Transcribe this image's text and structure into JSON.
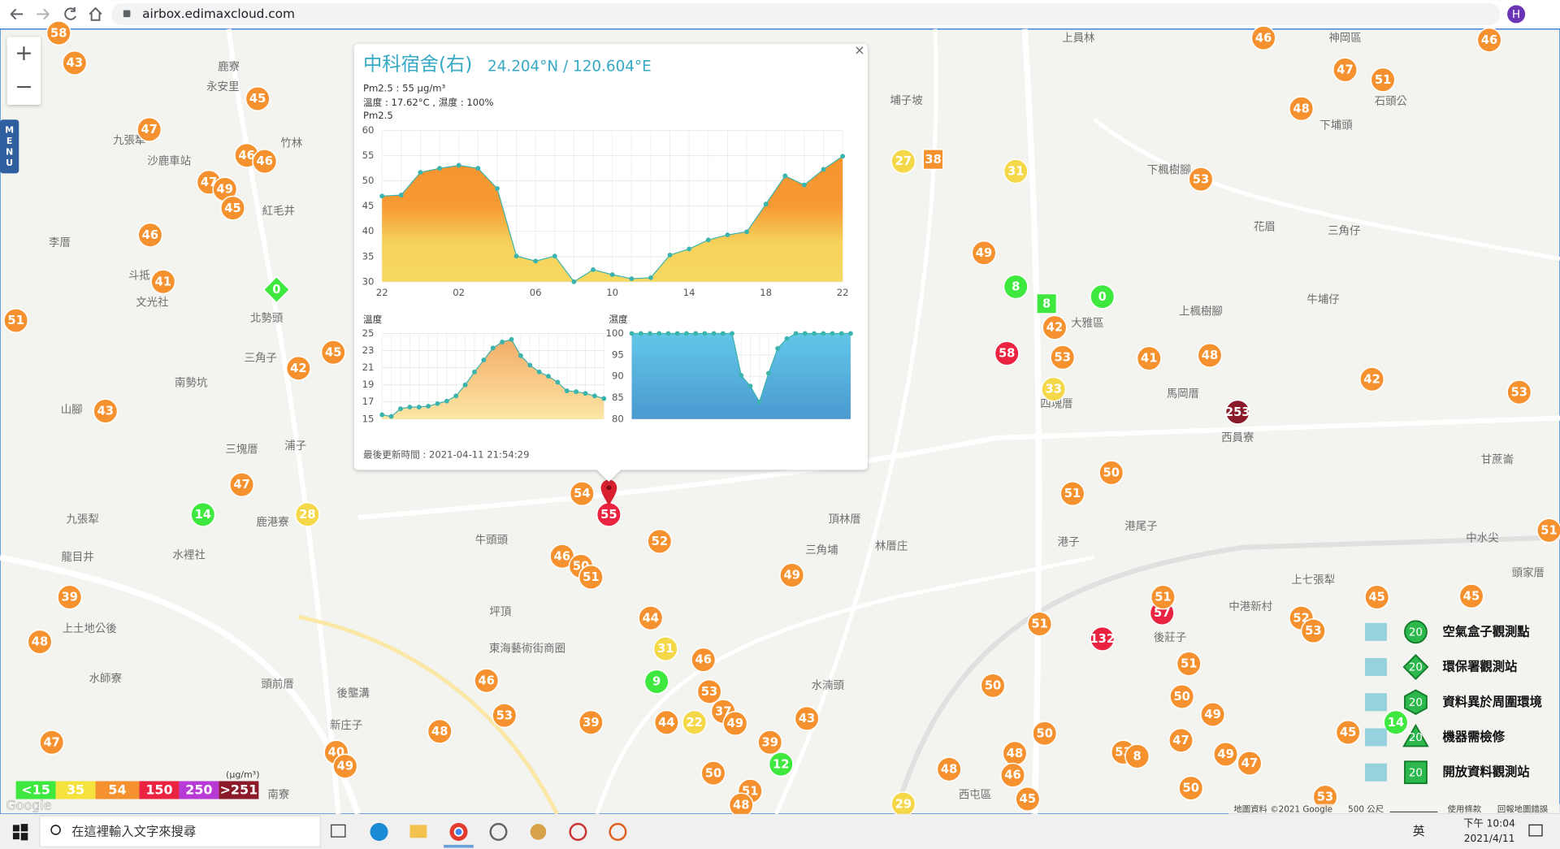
{
  "browser": {
    "url": "airbox.edimaxcloud.com",
    "avatar": "H"
  },
  "map": {
    "menu": "MENU",
    "zoom_in": "+",
    "zoom_out": "−",
    "google": "Google",
    "footer": [
      "地圖資料 ©2021 Google",
      "500 公尺",
      "使用條款",
      "回報地圖錯誤"
    ],
    "scale_unit": "(μg/m³)",
    "scale": [
      {
        "label": "<15",
        "color": "#3ee83e"
      },
      {
        "label": "35",
        "color": "#f5e23c"
      },
      {
        "label": "54",
        "color": "#f5922f"
      },
      {
        "label": "150",
        "color": "#ea2440"
      },
      {
        "label": "250",
        "color": "#b83ad4"
      },
      {
        "label": ">251",
        "color": "#8b1a2b"
      }
    ],
    "legend": [
      {
        "label": "空氣盒子觀測點",
        "icon_label": "20"
      },
      {
        "label": "環保署觀測站",
        "icon_label": "20"
      },
      {
        "label": "資料異於周圍環境",
        "icon_label": "20"
      },
      {
        "label": "機器需檢修",
        "icon_label": "20"
      },
      {
        "label": "開放資料觀測站",
        "icon_label": "20"
      }
    ],
    "places": [
      "鹿寮",
      "永安里",
      "九張犁",
      "沙鹿車站",
      "竹林",
      "紅毛井",
      "李厝",
      "斗抵",
      "文光社",
      "北勢頭",
      "三角子",
      "南勢坑",
      "山腳",
      "三塊厝",
      "浦子",
      "九張犁",
      "龍目井",
      "水裡社",
      "鹿港寮",
      "牛頭頭",
      "坪頂",
      "東海藝術街商圈",
      "水師寮",
      "頭前厝",
      "後壟溝",
      "新庄子",
      "南寮",
      "上土地公後",
      "上員林",
      "神岡區",
      "石頭公",
      "下埔頭",
      "埔子坡",
      "下楓樹腳",
      "花眉",
      "三角仔",
      "牛埔仔",
      "上楓樹腳",
      "大雅區",
      "四塊厝",
      "馬岡厝",
      "西員寮",
      "港尾子",
      "港子",
      "上七張犁",
      "中港新村",
      "後莊子",
      "林厝庄",
      "三角埔",
      "頂林厝",
      "水湳頭",
      "西屯區",
      "甘蔗崙",
      "頭家厝",
      "中水尖"
    ],
    "markers": [
      {
        "value": 58,
        "color": "#f5922f"
      },
      {
        "value": 43,
        "color": "#f5922f"
      },
      {
        "value": 45,
        "color": "#f5922f"
      },
      {
        "value": 47,
        "color": "#f5922f"
      },
      {
        "value": 46,
        "color": "#f5922f"
      },
      {
        "value": 46,
        "color": "#f5922f"
      },
      {
        "value": 47,
        "color": "#f5922f"
      },
      {
        "value": 49,
        "color": "#f5922f"
      },
      {
        "value": 45,
        "color": "#f5922f"
      },
      {
        "value": 46,
        "color": "#f5922f"
      },
      {
        "value": 41,
        "color": "#f5922f"
      },
      {
        "value": 0,
        "color": "#3ee83e"
      },
      {
        "value": 51,
        "color": "#f5922f"
      },
      {
        "value": 45,
        "color": "#f5922f"
      },
      {
        "value": 42,
        "color": "#f5922f"
      },
      {
        "value": 43,
        "color": "#f5922f"
      },
      {
        "value": 47,
        "color": "#f5922f"
      },
      {
        "value": 14,
        "color": "#3ee83e"
      },
      {
        "value": 28,
        "color": "#f5d84a"
      },
      {
        "value": 39,
        "color": "#f5922f"
      },
      {
        "value": 48,
        "color": "#f5922f"
      },
      {
        "value": 47,
        "color": "#f5922f"
      },
      {
        "value": 40,
        "color": "#f5922f"
      },
      {
        "value": 49,
        "color": "#f5922f"
      },
      {
        "value": 48,
        "color": "#f5922f"
      },
      {
        "value": 53,
        "color": "#f5922f"
      },
      {
        "value": 39,
        "color": "#f5922f"
      },
      {
        "value": 46,
        "color": "#f5922f"
      },
      {
        "value": 46,
        "color": "#f5922f"
      },
      {
        "value": 50,
        "color": "#f5922f"
      },
      {
        "value": 51,
        "color": "#f5922f"
      },
      {
        "value": 54,
        "color": "#f5922f"
      },
      {
        "value": 52,
        "color": "#f5922f"
      },
      {
        "value": 44,
        "color": "#f5922f"
      },
      {
        "value": 31,
        "color": "#f5d84a"
      },
      {
        "value": 9,
        "color": "#3ee83e"
      },
      {
        "value": 46,
        "color": "#f5922f"
      },
      {
        "value": 53,
        "color": "#f5922f"
      },
      {
        "value": 37,
        "color": "#f5922f"
      },
      {
        "value": 49,
        "color": "#f5922f"
      },
      {
        "value": 22,
        "color": "#f5d84a"
      },
      {
        "value": 44,
        "color": "#f5922f"
      },
      {
        "value": 43,
        "color": "#f5922f"
      },
      {
        "value": 49,
        "color": "#f5922f"
      },
      {
        "value": 39,
        "color": "#f5922f"
      },
      {
        "value": 12,
        "color": "#3ee83e"
      },
      {
        "value": 50,
        "color": "#f5922f"
      },
      {
        "value": 51,
        "color": "#f5922f"
      },
      {
        "value": 48,
        "color": "#f5922f"
      },
      {
        "value": 27,
        "color": "#f5d84a"
      },
      {
        "value": 38,
        "color": "#f5922f"
      },
      {
        "value": 31,
        "color": "#f5d84a"
      },
      {
        "value": 49,
        "color": "#f5922f"
      },
      {
        "value": 8,
        "color": "#3ee83e"
      },
      {
        "value": 8,
        "color": "#3ee83e"
      },
      {
        "value": 0,
        "color": "#3ee83e"
      },
      {
        "value": 42,
        "color": "#f5922f"
      },
      {
        "value": 58,
        "color": "#ea2440"
      },
      {
        "value": 53,
        "color": "#f5922f"
      },
      {
        "value": 33,
        "color": "#f5d84a"
      },
      {
        "value": 41,
        "color": "#f5922f"
      },
      {
        "value": 48,
        "color": "#f5922f"
      },
      {
        "value": 253,
        "color": "#8b1a2b"
      },
      {
        "value": 50,
        "color": "#f5922f"
      },
      {
        "value": 51,
        "color": "#f5922f"
      },
      {
        "value": 53,
        "color": "#f5922f"
      },
      {
        "value": 48,
        "color": "#f5922f"
      },
      {
        "value": 46,
        "color": "#f5922f"
      },
      {
        "value": 47,
        "color": "#f5922f"
      },
      {
        "value": 51,
        "color": "#f5922f"
      },
      {
        "value": 46,
        "color": "#f5922f"
      },
      {
        "value": 42,
        "color": "#f5922f"
      },
      {
        "value": 53,
        "color": "#f5922f"
      },
      {
        "value": 57,
        "color": "#ea2440"
      },
      {
        "value": 51,
        "color": "#f5922f"
      },
      {
        "value": 132,
        "color": "#ea2440"
      },
      {
        "value": 51,
        "color": "#f5922f"
      },
      {
        "value": 51,
        "color": "#f5922f"
      },
      {
        "value": 50,
        "color": "#f5922f"
      },
      {
        "value": 49,
        "color": "#f5922f"
      },
      {
        "value": 47,
        "color": "#f5922f"
      },
      {
        "value": 49,
        "color": "#f5922f"
      },
      {
        "value": 47,
        "color": "#f5922f"
      },
      {
        "value": 50,
        "color": "#f5922f"
      },
      {
        "value": 50,
        "color": "#f5922f"
      },
      {
        "value": 48,
        "color": "#f5922f"
      },
      {
        "value": 46,
        "color": "#f5922f"
      },
      {
        "value": 45,
        "color": "#f5922f"
      },
      {
        "value": 48,
        "color": "#f5922f"
      },
      {
        "value": 50,
        "color": "#f5922f"
      },
      {
        "value": 53,
        "color": "#f5922f"
      },
      {
        "value": 8,
        "color": "#f5922f"
      },
      {
        "value": 53,
        "color": "#f5922f"
      },
      {
        "value": 52,
        "color": "#f5922f"
      },
      {
        "value": 53,
        "color": "#f5922f"
      },
      {
        "value": 45,
        "color": "#f5922f"
      },
      {
        "value": 45,
        "color": "#f5922f"
      },
      {
        "value": 45,
        "color": "#f5922f"
      },
      {
        "value": 14,
        "color": "#3ee83e"
      },
      {
        "value": 51,
        "color": "#f5922f"
      },
      {
        "value": 29,
        "color": "#f5d84a"
      },
      {
        "value": 55,
        "color": "#ea2440"
      }
    ]
  },
  "popup": {
    "close": "×",
    "title": "中科宿舍(右)",
    "coords": "24.204°N / 120.604°E",
    "lines": [
      "Pm2.5 : 55 μg/m³",
      "溫度 : 17.62°C , 濕度 : 100%"
    ],
    "updated": "最後更新時間 : 2021-04-11 21:54:29"
  },
  "chart_data": [
    {
      "type": "area",
      "title": "Pm2.5",
      "categories": [
        "22",
        null,
        null,
        null,
        "02",
        null,
        null,
        null,
        "06",
        null,
        null,
        null,
        "10",
        null,
        null,
        null,
        "14",
        null,
        null,
        null,
        "18",
        null,
        null,
        null,
        "22"
      ],
      "values": [
        47.0,
        47.2,
        51.7,
        52.5,
        53.1,
        52.5,
        48.5,
        35.1,
        34.1,
        35.1,
        30.0,
        32.4,
        31.4,
        30.6,
        30.8,
        35.3,
        36.5,
        38.3,
        39.3,
        39.9,
        45.4,
        51.0,
        49.2,
        52.3,
        54.9
      ],
      "ylim": [
        30,
        60
      ],
      "yticks": [
        30,
        35,
        40,
        45,
        50,
        55,
        60
      ],
      "grid": true,
      "color": "#3cb4ae",
      "fill_colors": [
        "#f7922c",
        "#f7952f",
        "#f79a33",
        "#f6d35c",
        "#f6d862"
      ]
    },
    {
      "type": "area",
      "title": "溫度",
      "values": [
        15.5,
        15.3,
        16.2,
        16.4,
        16.4,
        16.5,
        16.8,
        17.1,
        17.7,
        19.0,
        20.5,
        21.9,
        23.3,
        24.0,
        24.3,
        22.4,
        21.3,
        20.5,
        20.0,
        19.3,
        18.3,
        18.2,
        18.0,
        17.7,
        17.4
      ],
      "ylim": [
        15,
        25
      ],
      "yticks": [
        15,
        17,
        19,
        21,
        23,
        25
      ],
      "grid": true,
      "color": "#3cb4ae",
      "fill_colors": [
        "#f3a764",
        "#fce6a4"
      ]
    },
    {
      "type": "area",
      "title": "濕度",
      "values": [
        100,
        100,
        100,
        100,
        100,
        100,
        100,
        100,
        100,
        100,
        100,
        100,
        90.2,
        87.7,
        84,
        90.7,
        96.5,
        98.8,
        100,
        100,
        100,
        100,
        100,
        100,
        100
      ],
      "ylim": [
        80,
        100
      ],
      "yticks": [
        80,
        85,
        90,
        95,
        100
      ],
      "grid": true,
      "color": "#3cb4ae",
      "fill_colors": [
        "#62c6e8",
        "#4a9ad0"
      ]
    }
  ],
  "taskbar": {
    "search": "在這裡輸入文字來搜尋",
    "ime": "英",
    "time": "下午 10:04",
    "date": "2021/4/11"
  }
}
